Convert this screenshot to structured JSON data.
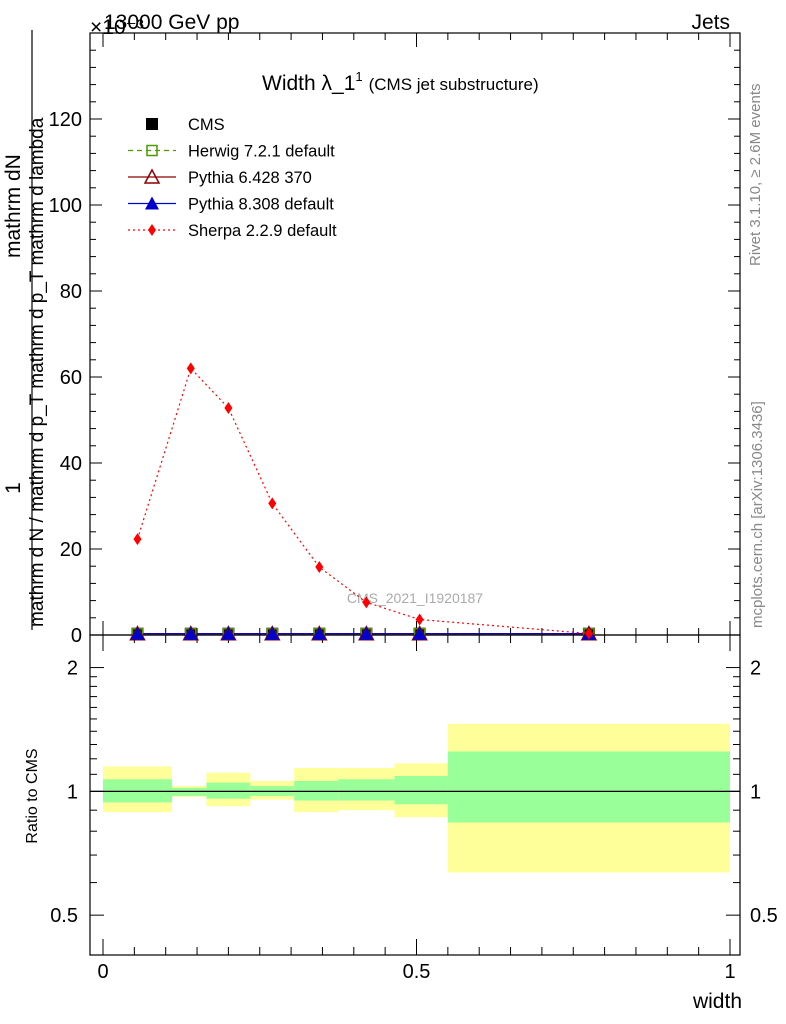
{
  "header": {
    "energy_label": "13000 GeV pp",
    "exponent_label": "×10⁻³",
    "category_label": "Jets"
  },
  "side_labels": {
    "rivet": "Rivet 3.1.10, ≥ 2.6M events",
    "mcplots": "mcplots.cern.ch [arXiv:1306.3436]"
  },
  "watermark": "CMS_2021_I1920187",
  "chart_data": [
    {
      "type": "line",
      "title": "Width λ_1",
      "title_superscript": "1",
      "subtitle": "(CMS jet substructure)",
      "ylabel_top": "mathrm dN",
      "ylabel_bottom": "mathrm d N / mathrm d p_T mathrm d p_T mathrm d lambda",
      "ylabel_numerator": "1",
      "xlim": [
        0,
        1
      ],
      "ylim": [
        0,
        140
      ],
      "y_scale_note": "×10⁻³",
      "yticks": [
        0,
        20,
        40,
        60,
        80,
        100,
        120
      ],
      "legend_position": "top-left",
      "series": [
        {
          "name": "CMS",
          "color": "#000000",
          "marker": "filled-square",
          "x": [
            0.055,
            0.14,
            0.2,
            0.27,
            0.345,
            0.42,
            0.505,
            0.775
          ],
          "y": [
            0.3,
            0.3,
            0.3,
            0.3,
            0.3,
            0.3,
            0.3,
            0.3
          ]
        },
        {
          "name": "Herwig 7.2.1 default",
          "color": "#4c9a00",
          "marker": "open-square",
          "line": "dashed",
          "x": [
            0.055,
            0.14,
            0.2,
            0.27,
            0.345,
            0.42,
            0.505,
            0.775
          ],
          "y": [
            0.3,
            0.3,
            0.3,
            0.3,
            0.3,
            0.3,
            0.3,
            0.3
          ]
        },
        {
          "name": "Pythia 6.428 370",
          "color": "#8b0000",
          "marker": "open-triangle",
          "line": "solid",
          "x": [
            0.055,
            0.14,
            0.2,
            0.27,
            0.345,
            0.42,
            0.505,
            0.775
          ],
          "y": [
            0.3,
            0.3,
            0.3,
            0.3,
            0.3,
            0.3,
            0.3,
            0.3
          ]
        },
        {
          "name": "Pythia 8.308 default",
          "color": "#0000cc",
          "marker": "filled-triangle",
          "line": "solid",
          "x": [
            0.055,
            0.14,
            0.2,
            0.27,
            0.345,
            0.42,
            0.505,
            0.775
          ],
          "y": [
            0.3,
            0.3,
            0.3,
            0.3,
            0.3,
            0.3,
            0.3,
            0.3
          ]
        },
        {
          "name": "Sherpa 2.2.9 default",
          "color": "#ff0000",
          "marker": "filled-diamond",
          "line": "dotted",
          "x": [
            0.055,
            0.14,
            0.2,
            0.27,
            0.345,
            0.42,
            0.505,
            0.775
          ],
          "y": [
            22.3,
            62.0,
            52.8,
            30.6,
            15.8,
            7.6,
            3.6,
            0.35
          ]
        }
      ]
    },
    {
      "type": "area",
      "ylabel": "Ratio to CMS",
      "xlabel": "width",
      "xlim": [
        0,
        1
      ],
      "ylim": [
        0.4,
        2.4
      ],
      "yscale": "log",
      "yticks": [
        0.5,
        1,
        2
      ],
      "xticks": [
        0,
        0.5,
        1
      ],
      "reference_line": 1,
      "band_colors": {
        "outer": "#ffff99",
        "inner": "#99ff99"
      },
      "bins": [
        {
          "x": [
            0.0,
            0.11
          ],
          "inner": [
            0.94,
            1.07
          ],
          "outer": [
            0.89,
            1.15
          ]
        },
        {
          "x": [
            0.11,
            0.165
          ],
          "inner": [
            0.975,
            1.02
          ],
          "outer": [
            0.97,
            1.03
          ]
        },
        {
          "x": [
            0.165,
            0.235
          ],
          "inner": [
            0.96,
            1.05
          ],
          "outer": [
            0.92,
            1.11
          ]
        },
        {
          "x": [
            0.235,
            0.305
          ],
          "inner": [
            0.975,
            1.03
          ],
          "outer": [
            0.955,
            1.06
          ]
        },
        {
          "x": [
            0.305,
            0.375
          ],
          "inner": [
            0.95,
            1.06
          ],
          "outer": [
            0.89,
            1.14
          ]
        },
        {
          "x": [
            0.375,
            0.465
          ],
          "inner": [
            0.95,
            1.07
          ],
          "outer": [
            0.9,
            1.14
          ]
        },
        {
          "x": [
            0.465,
            0.55
          ],
          "inner": [
            0.93,
            1.09
          ],
          "outer": [
            0.865,
            1.17
          ]
        },
        {
          "x": [
            0.55,
            1.0
          ],
          "inner": [
            0.84,
            1.25
          ],
          "outer": [
            0.635,
            1.46
          ]
        }
      ]
    }
  ]
}
